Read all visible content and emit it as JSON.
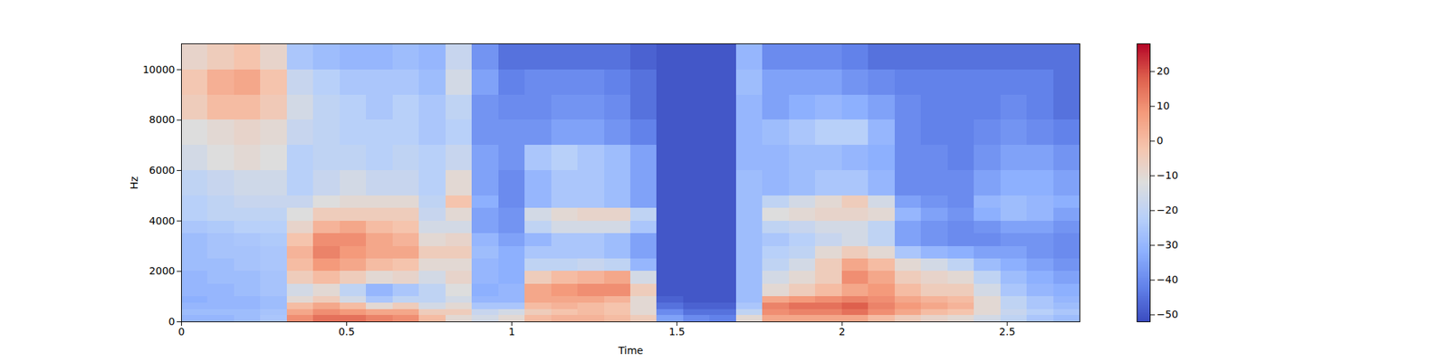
{
  "chart_data": {
    "type": "heatmap",
    "x_label": "Time",
    "y_label": "Hz",
    "xlim": [
      0,
      2.72
    ],
    "ylim": [
      0,
      11025
    ],
    "xticks": [
      0,
      0.5,
      1,
      1.5,
      2,
      2.5
    ],
    "yticks": [
      0,
      2000,
      4000,
      6000,
      8000,
      10000
    ],
    "x_edges": [
      0,
      0.08,
      0.16,
      0.24,
      0.32,
      0.4,
      0.48,
      0.56,
      0.64,
      0.72,
      0.8,
      0.88,
      0.96,
      1.04,
      1.12,
      1.2,
      1.28,
      1.36,
      1.44,
      1.52,
      1.6,
      1.68,
      1.76,
      1.84,
      1.92,
      2.0,
      2.08,
      2.16,
      2.24,
      2.32,
      2.4,
      2.48,
      2.56,
      2.64,
      2.72
    ],
    "y_edges": [
      0,
      250,
      500,
      750,
      1000,
      1500,
      2000,
      2500,
      3000,
      3500,
      4000,
      4500,
      5000,
      6000,
      7000,
      8000,
      9000,
      10000,
      11025
    ],
    "cells": [
      [
        -30,
        -28,
        -30,
        -32,
        -30,
        -30,
        -28,
        -28,
        -28,
        -25,
        -22,
        -22,
        -20,
        -15,
        -12,
        -5,
        -3,
        -8
      ],
      [
        -30,
        -28,
        -30,
        -30,
        -30,
        -28,
        -28,
        -26,
        -26,
        -24,
        -20,
        -20,
        -18,
        -12,
        -10,
        0,
        3,
        -5
      ],
      [
        -28,
        -28,
        -30,
        -30,
        -28,
        -28,
        -26,
        -26,
        -25,
        -22,
        -20,
        -18,
        -16,
        -10,
        -8,
        0,
        5,
        -2
      ],
      [
        -25,
        -26,
        -28,
        -28,
        -26,
        -26,
        -25,
        -25,
        -24,
        -22,
        -20,
        -18,
        -16,
        -12,
        -10,
        -4,
        -2,
        -8
      ],
      [
        10,
        5,
        0,
        -10,
        -15,
        -5,
        0,
        2,
        -2,
        -8,
        -12,
        -18,
        -22,
        -22,
        -18,
        -15,
        -18,
        -25
      ],
      [
        15,
        10,
        5,
        -5,
        -10,
        0,
        8,
        12,
        10,
        2,
        -5,
        -12,
        -18,
        -20,
        -20,
        -20,
        -22,
        -28
      ],
      [
        15,
        8,
        0,
        -15,
        -20,
        -5,
        5,
        8,
        10,
        5,
        -5,
        -10,
        -15,
        -20,
        -22,
        -22,
        -25,
        -30
      ],
      [
        12,
        5,
        -10,
        -25,
        -30,
        -10,
        0,
        5,
        5,
        0,
        -5,
        -10,
        -18,
        -22,
        -22,
        -25,
        -25,
        -30
      ],
      [
        10,
        5,
        -5,
        -20,
        -25,
        -8,
        -2,
        5,
        2,
        -2,
        -5,
        -10,
        -18,
        -20,
        -22,
        -22,
        -25,
        -28
      ],
      [
        0,
        -5,
        -15,
        -20,
        -20,
        -15,
        -10,
        -5,
        -10,
        -15,
        -18,
        -20,
        -22,
        -22,
        -25,
        -25,
        -28,
        -30
      ],
      [
        -10,
        -5,
        -10,
        -15,
        -12,
        -8,
        -10,
        -5,
        -8,
        -15,
        -10,
        -2,
        -10,
        -18,
        -22,
        -20,
        -15,
        -18
      ],
      [
        -15,
        -18,
        -25,
        -30,
        -32,
        -30,
        -30,
        -28,
        -30,
        -35,
        -35,
        -32,
        -35,
        -35,
        -38,
        -38,
        -35,
        -38
      ],
      [
        -10,
        -15,
        -25,
        -30,
        -30,
        -32,
        -32,
        -32,
        -35,
        -38,
        -38,
        -40,
        -40,
        -38,
        -38,
        -40,
        -42,
        -45
      ],
      [
        0,
        -5,
        0,
        5,
        5,
        -5,
        -20,
        -25,
        -30,
        -20,
        -15,
        -30,
        -30,
        -25,
        -38,
        -40,
        -40,
        -45
      ],
      [
        2,
        -2,
        2,
        5,
        8,
        0,
        -20,
        -25,
        -25,
        -15,
        -10,
        -25,
        -25,
        -22,
        -35,
        -38,
        -40,
        -45
      ],
      [
        2,
        0,
        0,
        5,
        10,
        2,
        -18,
        -25,
        -25,
        -15,
        -8,
        -25,
        -25,
        -25,
        -35,
        -38,
        -40,
        -45
      ],
      [
        0,
        -2,
        -2,
        2,
        10,
        5,
        -20,
        -28,
        -28,
        -15,
        -8,
        -28,
        -28,
        -28,
        -38,
        -40,
        -42,
        -45
      ],
      [
        -5,
        -10,
        -10,
        -10,
        -5,
        -15,
        -30,
        -35,
        -35,
        -25,
        -20,
        -35,
        -35,
        -35,
        -42,
        -45,
        -45,
        -48
      ],
      [
        -35,
        -40,
        -45,
        -48,
        -50,
        -50,
        -50,
        -50,
        -50,
        -50,
        -50,
        -50,
        -50,
        -50,
        -50,
        -50,
        -50,
        -50
      ],
      [
        -40,
        -45,
        -48,
        -50,
        -50,
        -50,
        -50,
        -50,
        -50,
        -50,
        -50,
        -50,
        -50,
        -50,
        -50,
        -50,
        -50,
        -50
      ],
      [
        -42,
        -45,
        -48,
        -50,
        -50,
        -50,
        -50,
        -50,
        -50,
        -50,
        -50,
        -50,
        -50,
        -50,
        -50,
        -50,
        -50,
        -50
      ],
      [
        -10,
        -20,
        -25,
        -28,
        -28,
        -28,
        -28,
        -28,
        -28,
        -28,
        -28,
        -28,
        -28,
        -30,
        -30,
        -30,
        -28,
        -30
      ],
      [
        5,
        10,
        12,
        5,
        -10,
        -15,
        -20,
        -22,
        -25,
        -20,
        -12,
        -20,
        -30,
        -30,
        -28,
        -35,
        -35,
        -40
      ],
      [
        5,
        12,
        15,
        8,
        -5,
        -10,
        -15,
        -20,
        -22,
        -18,
        -10,
        -15,
        -28,
        -28,
        -25,
        -32,
        -35,
        -40
      ],
      [
        5,
        12,
        15,
        10,
        0,
        -5,
        -5,
        -10,
        -18,
        -15,
        -8,
        -10,
        -25,
        -28,
        -22,
        -30,
        -35,
        -40
      ],
      [
        5,
        15,
        18,
        12,
        5,
        10,
        5,
        -5,
        -15,
        -15,
        -8,
        -5,
        -25,
        -30,
        -22,
        -32,
        -38,
        -42
      ],
      [
        0,
        10,
        12,
        10,
        8,
        5,
        0,
        -10,
        -20,
        -20,
        -10,
        -15,
        -30,
        -32,
        -30,
        -35,
        -40,
        -45
      ],
      [
        -5,
        5,
        8,
        5,
        0,
        -5,
        -10,
        -25,
        -35,
        -35,
        -30,
        -35,
        -40,
        -40,
        -40,
        -40,
        -42,
        -45
      ],
      [
        -8,
        0,
        5,
        2,
        -5,
        -8,
        -15,
        -30,
        -38,
        -38,
        -35,
        -38,
        -40,
        -40,
        -42,
        -42,
        -42,
        -45
      ],
      [
        -10,
        -2,
        2,
        0,
        -5,
        -10,
        -20,
        -32,
        -40,
        -40,
        -38,
        -40,
        -40,
        -42,
        -42,
        -42,
        -42,
        -45
      ],
      [
        -15,
        -10,
        -10,
        -10,
        -15,
        -20,
        -28,
        -35,
        -40,
        -38,
        -32,
        -30,
        -35,
        -38,
        -40,
        -42,
        -42,
        -45
      ],
      [
        -20,
        -18,
        -20,
        -20,
        -25,
        -28,
        -32,
        -35,
        -38,
        -35,
        -28,
        -28,
        -32,
        -35,
        -38,
        -40,
        -42,
        -45
      ],
      [
        -25,
        -22,
        -25,
        -25,
        -30,
        -32,
        -35,
        -38,
        -38,
        -35,
        -30,
        -30,
        -32,
        -35,
        -40,
        -42,
        -42,
        -45
      ],
      [
        -28,
        -25,
        -28,
        -30,
        -32,
        -35,
        -38,
        -40,
        -40,
        -38,
        -35,
        -32,
        -35,
        -38,
        -42,
        -45,
        -45,
        -45
      ]
    ],
    "colorbar_range": [
      -52,
      28
    ],
    "colorbar_ticks": [
      {
        "value": -50,
        "label": "−50"
      },
      {
        "value": -40,
        "label": "−40"
      },
      {
        "value": -30,
        "label": "−30"
      },
      {
        "value": -20,
        "label": "−20"
      },
      {
        "value": -10,
        "label": "−10"
      },
      0,
      10,
      20
    ]
  }
}
